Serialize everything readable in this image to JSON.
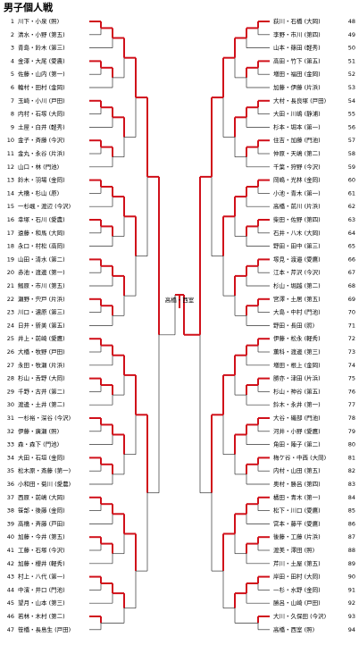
{
  "header": {
    "title": "男子個人戦"
  },
  "left": [
    {
      "no": 1,
      "name": "川下・小泉 (照)"
    },
    {
      "no": 2,
      "name": "清水・小野 (第五)"
    },
    {
      "no": 3,
      "name": "青島・鈴木 (第三)"
    },
    {
      "no": 4,
      "name": "金澤・大尾 (愛農)"
    },
    {
      "no": 5,
      "name": "佐藤・山内 (第一)"
    },
    {
      "no": 6,
      "name": "輪村・田村 (金岡)"
    },
    {
      "no": 7,
      "name": "玉崎・小川 (戸田)"
    },
    {
      "no": 8,
      "name": "内村・石塚 (大岡)"
    },
    {
      "no": 9,
      "name": "土屋・白井 (軽秀)"
    },
    {
      "no": 10,
      "name": "金子・斉藤 (今沢)"
    },
    {
      "no": 11,
      "name": "金丸・永谷 (片浜)"
    },
    {
      "no": 12,
      "name": "山口・林 (門池)"
    },
    {
      "no": 13,
      "name": "鈴木・羽場 (金岡)"
    },
    {
      "no": 14,
      "name": "大橋・杉山 (原)"
    },
    {
      "no": 15,
      "name": "一杉颯・渡辺 (今沢)"
    },
    {
      "no": 16,
      "name": "幸塚・石川 (愛農)"
    },
    {
      "no": 17,
      "name": "遠藤・和馬 (大岡)"
    },
    {
      "no": 18,
      "name": "永口・村松 (高岡)"
    },
    {
      "no": 19,
      "name": "山田・清水 (第二)"
    },
    {
      "no": 20,
      "name": "赤池・渡邊 (第一)"
    },
    {
      "no": 21,
      "name": "鰯原・市川 (第五)"
    },
    {
      "no": 22,
      "name": "瀬野・宍戸 (片浜)"
    },
    {
      "no": 23,
      "name": "川口・濃原 (第三)"
    },
    {
      "no": 24,
      "name": "日井・新美 (第五)"
    },
    {
      "no": 25,
      "name": "井上・前崎 (愛鷹)"
    },
    {
      "no": 26,
      "name": "大橋・牧野 (戸田)"
    },
    {
      "no": 27,
      "name": "永田・牧瀬 (片浜)"
    },
    {
      "no": 28,
      "name": "杉山・舌野 (大岡)"
    },
    {
      "no": 29,
      "name": "千野・古井 (第二)"
    },
    {
      "no": 30,
      "name": "渡邊・土井 (第二)"
    },
    {
      "no": 31,
      "name": "一杉裕・深谷 (今沢)"
    },
    {
      "no": 32,
      "name": "伊藤・廣瀬 (照)"
    },
    {
      "no": 33,
      "name": "森・森下 (門池)"
    },
    {
      "no": 34,
      "name": "大田・石垣 (金岡)"
    },
    {
      "no": 35,
      "name": "松木原・斎藤 (第一)"
    },
    {
      "no": 36,
      "name": "小和田・菊川 (愛農)"
    },
    {
      "no": 37,
      "name": "西原・前嶋 (大岡)"
    },
    {
      "no": 38,
      "name": "笹部・後藤 (金岡)"
    },
    {
      "no": 39,
      "name": "高橋・斉藤 (戸田)"
    },
    {
      "no": 40,
      "name": "加藤・今井 (第五)"
    },
    {
      "no": 41,
      "name": "工藤・石塚 (今沢)"
    },
    {
      "no": 42,
      "name": "加藤・櫻井 (軽秀)"
    },
    {
      "no": 43,
      "name": "村上・八代 (第一)"
    },
    {
      "no": 44,
      "name": "中濱・井口 (門池)"
    },
    {
      "no": 45,
      "name": "望月・山本 (第三)"
    },
    {
      "no": 46,
      "name": "若林・木村 (第二)"
    },
    {
      "no": 47,
      "name": "笹橋・長島生 (戸田)"
    }
  ],
  "right": [
    {
      "no": 48,
      "name": "荻川・石橋 (大岡)"
    },
    {
      "no": 49,
      "name": "李野・市川 (第四)"
    },
    {
      "no": 50,
      "name": "山本・篠田 (軽秀)"
    },
    {
      "no": 51,
      "name": "高田・竹下 (第五)"
    },
    {
      "no": 52,
      "name": "増田・福田 (金岡)"
    },
    {
      "no": 53,
      "name": "加藤・伊藤 (片浜)"
    },
    {
      "no": 54,
      "name": "大村・長良塚 (戸田)"
    },
    {
      "no": 55,
      "name": "大田・川嶋 (静浦)"
    },
    {
      "no": 56,
      "name": "杉本・堀本 (第一)"
    },
    {
      "no": 57,
      "name": "住吉・加藤 (門池)"
    },
    {
      "no": 58,
      "name": "仲原・天嶋 (第二)"
    },
    {
      "no": 59,
      "name": "千葉・狩野 (今沢)"
    },
    {
      "no": 60,
      "name": "岡嶋・光林 (金岡)"
    },
    {
      "no": 61,
      "name": "小池・青木 (第一)"
    },
    {
      "no": 62,
      "name": "高橋・前川 (片浜)"
    },
    {
      "no": 63,
      "name": "柴田・佐野 (第四)"
    },
    {
      "no": 64,
      "name": "石井・八木 (大岡)"
    },
    {
      "no": 65,
      "name": "野田・田中 (第三)"
    },
    {
      "no": 66,
      "name": "塚見・渡邉 (愛鷹)"
    },
    {
      "no": 67,
      "name": "江本・芹沢 (今沢)"
    },
    {
      "no": 68,
      "name": "杉山・堀越 (第二)"
    },
    {
      "no": 69,
      "name": "宮澤・土居 (第五)"
    },
    {
      "no": 70,
      "name": "大島・中村 (門池)"
    },
    {
      "no": 71,
      "name": "野田・長田 (照)"
    },
    {
      "no": 72,
      "name": "伊藤・松永 (軽秀)"
    },
    {
      "no": 73,
      "name": "薫科・渡邊 (第三)"
    },
    {
      "no": 74,
      "name": "増田・根上 (金岡)"
    },
    {
      "no": 75,
      "name": "勝亦・津田 (片浜)"
    },
    {
      "no": 76,
      "name": "杉山・神谷 (第五)"
    },
    {
      "no": 77,
      "name": "鈴木・永井 (第一)"
    },
    {
      "no": 78,
      "name": "大谷・磯部 (門池)"
    },
    {
      "no": 79,
      "name": "河井・小野 (愛鷹)"
    },
    {
      "no": 80,
      "name": "角田・陣子 (第二)"
    },
    {
      "no": 81,
      "name": "梅ケ谷・中西 (大岡)"
    },
    {
      "no": 82,
      "name": "内村・山田 (第五)"
    },
    {
      "no": 83,
      "name": "奥村・勝呂 (第四)"
    },
    {
      "no": 84,
      "name": "橘田・青木 (第一)"
    },
    {
      "no": 85,
      "name": "松下・川口 (愛鷹)"
    },
    {
      "no": 86,
      "name": "宮本・藤平 (愛鷹)"
    },
    {
      "no": 87,
      "name": "後藤・工藤 (片浜)"
    },
    {
      "no": 88,
      "name": "渡美・澤田 (照)"
    },
    {
      "no": 89,
      "name": "芹川・土屋 (第五)"
    },
    {
      "no": 90,
      "name": "岸田・田村 (大岡)"
    },
    {
      "no": 91,
      "name": "一杉・水野 (金岡)"
    },
    {
      "no": 92,
      "name": "勝呂・山崎 (戸田)"
    },
    {
      "no": 93,
      "name": "大川・久保田 (今沢)"
    },
    {
      "no": 94,
      "name": "高橋・西室 (照)"
    }
  ],
  "champion": "高橋・西室"
}
